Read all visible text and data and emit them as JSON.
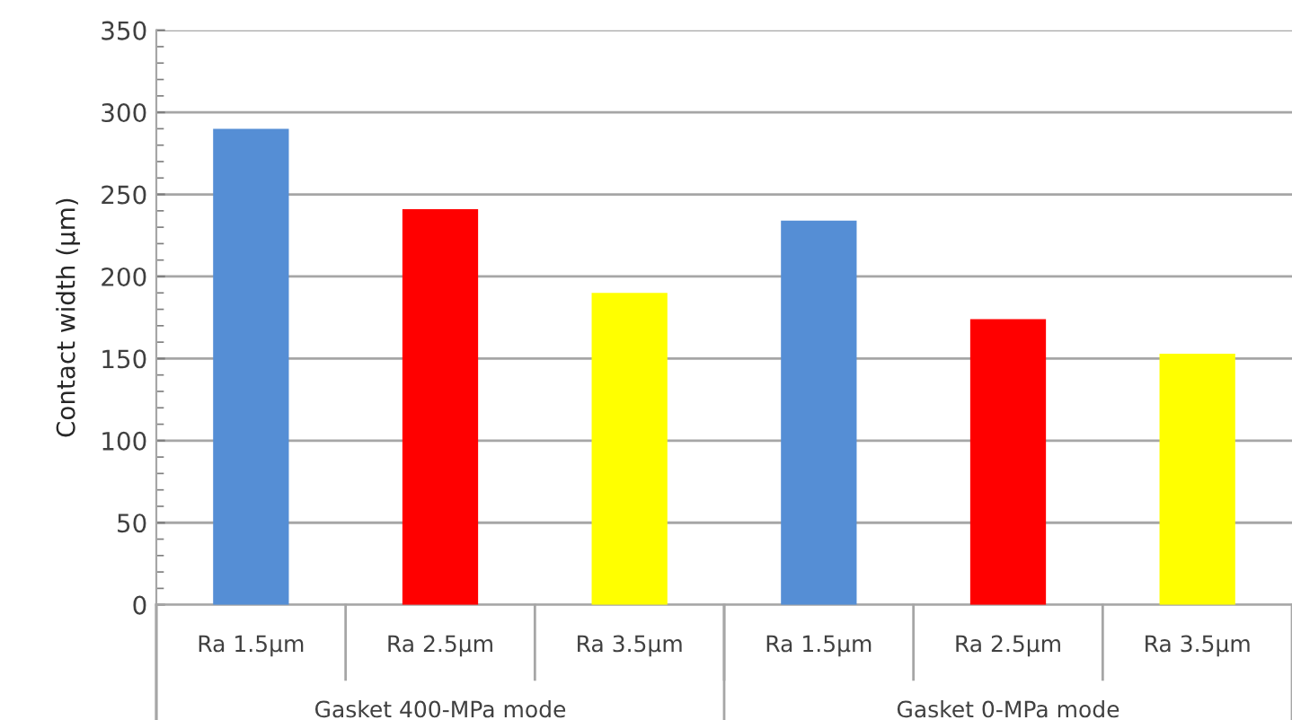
{
  "chart_data": {
    "type": "bar",
    "categories": [
      "Ra 1.5µm",
      "Ra 2.5µm",
      "Ra 3.5µm",
      "Ra 1.5µm",
      "Ra 2.5µm",
      "Ra 3.5µm"
    ],
    "values": [
      290,
      241,
      190,
      234,
      174,
      153
    ],
    "colors": [
      "#558ed5",
      "#ff0000",
      "#ffff00",
      "#558ed5",
      "#ff0000",
      "#ffff00"
    ],
    "ylabel": "Contact width (µm)",
    "ylim": [
      0,
      350
    ],
    "yticks": [
      0,
      50,
      100,
      150,
      200,
      250,
      300,
      350
    ],
    "grid": "y",
    "annotations": [
      "Gasket 400-MPa mode",
      "Gasket 0-MPa mode"
    ]
  }
}
